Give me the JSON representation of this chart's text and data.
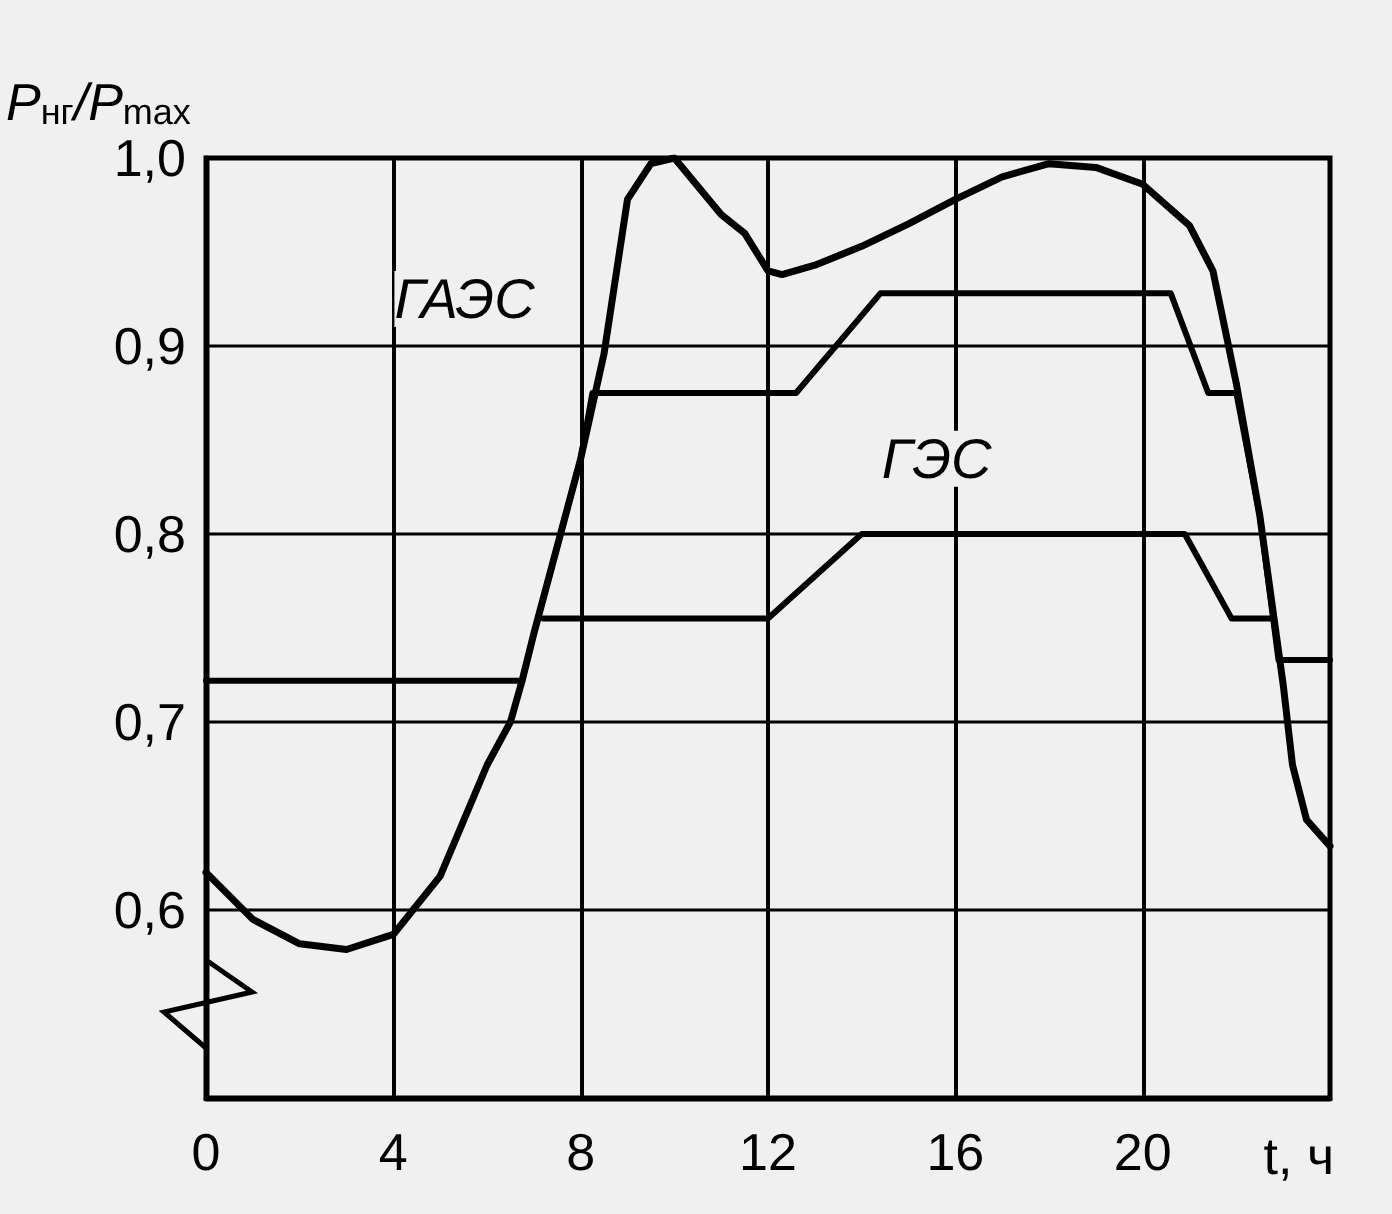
{
  "chart_data": {
    "type": "line",
    "ylabel": "P$_{нг}$/P$_{max}$",
    "xlabel": "t, ч",
    "xlim": [
      0,
      24
    ],
    "xticks": [
      0,
      4,
      8,
      12,
      16,
      20
    ],
    "ylim": [
      0.5,
      1.0
    ],
    "yticks": [
      {
        "value": 0.6,
        "label": "0,6"
      },
      {
        "value": 0.7,
        "label": "0,7"
      },
      {
        "value": 0.8,
        "label": "0,8"
      },
      {
        "value": 0.9,
        "label": "0,9"
      },
      {
        "value": 1.0,
        "label": "1,0"
      }
    ],
    "grid": true,
    "marker": "none",
    "line_style": "solid",
    "series": [
      {
        "color": "#000000",
        "x": [
          0,
          1,
          2,
          3,
          4,
          5,
          6,
          6.5,
          6.75,
          7,
          8,
          8.5,
          9,
          9.5,
          10,
          11,
          11.5,
          12,
          12.3,
          13,
          14,
          15,
          16,
          17,
          18,
          19,
          20,
          21,
          21.5,
          22,
          22.5,
          23,
          23.2,
          23.5,
          24
        ],
        "values": [
          0.62,
          0.595,
          0.582,
          0.579,
          0.587,
          0.618,
          0.677,
          0.7,
          0.722,
          0.747,
          0.84,
          0.896,
          0.978,
          0.997,
          1.0,
          0.97,
          0.96,
          0.94,
          0.938,
          0.943,
          0.953,
          0.965,
          0.978,
          0.99,
          0.997,
          0.995,
          0.986,
          0.964,
          0.94,
          0.88,
          0.81,
          0.72,
          0.677,
          0.648,
          0.634
        ]
      },
      {
        "color": "#000000",
        "x": [
          0,
          6.75,
          7,
          8,
          8.25,
          12.6,
          14.4,
          20.6,
          21.4,
          22,
          22.5,
          22.9,
          24
        ],
        "values": [
          0.722,
          0.722,
          0.747,
          0.84,
          0.875,
          0.875,
          0.928,
          0.928,
          0.875,
          0.875,
          0.81,
          0.733,
          0.733
        ]
      },
      {
        "color": "#000000",
        "x": [
          7.2,
          12,
          14,
          20.9,
          21.9,
          22.8
        ],
        "values": [
          0.755,
          0.755,
          0.8,
          0.8,
          0.755,
          0.755
        ]
      }
    ],
    "annotations": [
      "ГАЭС",
      "ГЭС"
    ]
  }
}
